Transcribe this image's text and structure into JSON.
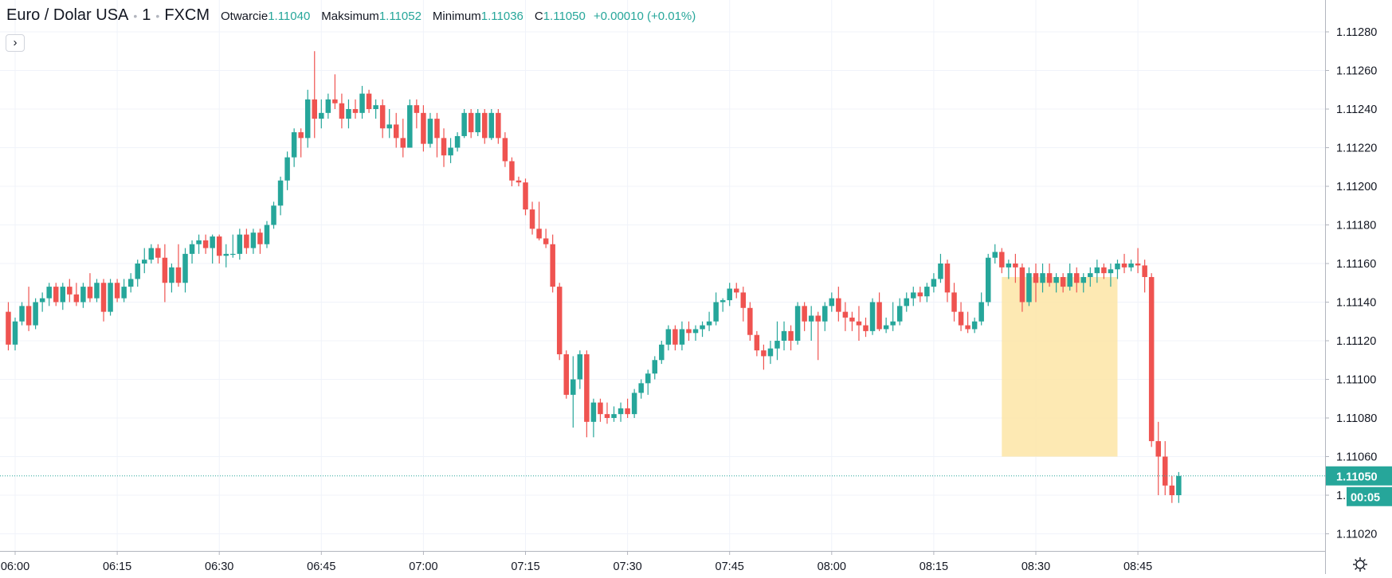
{
  "header": {
    "symbol": "Euro / Dolar USA",
    "interval": "1",
    "exchange": "FXCM",
    "open_label": "Otwarcie",
    "open_value": "1.11040",
    "high_label": "Maksimum",
    "high_value": "1.11052",
    "low_label": "Minimum",
    "low_value": "1.11036",
    "close_label": "C",
    "close_value": "1.11050",
    "change": "+0.00010 (+0.01%)"
  },
  "collapse_button": {
    "glyph": "›",
    "icon": "chevron-right-icon"
  },
  "settings": {
    "icon": "gear-icon"
  },
  "price_axis": {
    "labels": [
      "1.11280",
      "1.11260",
      "1.11240",
      "1.11220",
      "1.11200",
      "1.11180",
      "1.11160",
      "1.11140",
      "1.11120",
      "1.11100",
      "1.11080",
      "1.11060",
      "1.11040",
      "1.11020"
    ],
    "current_price": "1.11050",
    "countdown": "00:05"
  },
  "time_axis": {
    "labels": [
      "06:00",
      "06:15",
      "06:30",
      "06:45",
      "07:00",
      "07:15",
      "07:30",
      "07:45",
      "08:00",
      "08:15",
      "08:30",
      "08:45"
    ]
  },
  "colors": {
    "up": "#26a69a",
    "down": "#ef5350",
    "grid": "#f0f3fa",
    "highlight": "#fde5a6"
  },
  "chart_data": {
    "type": "candlestick",
    "symbol": "EURUSD",
    "interval_minutes": 1,
    "start_time": "05:59",
    "x_ticks": [
      "06:00",
      "06:15",
      "06:30",
      "06:45",
      "07:00",
      "07:15",
      "07:30",
      "07:45",
      "08:00",
      "08:15",
      "08:30",
      "08:45"
    ],
    "y_range": [
      1.11005,
      1.11295
    ],
    "y_ticks": [
      1.1128,
      1.1126,
      1.1124,
      1.1122,
      1.112,
      1.1118,
      1.1116,
      1.1114,
      1.1112,
      1.111,
      1.1108,
      1.1106,
      1.1104,
      1.1102
    ],
    "grid": true,
    "highlight_box": {
      "from": "08:25",
      "to": "08:42",
      "low": 1.1106,
      "high": 1.11153
    },
    "candles": [
      [
        1.11135,
        1.1114,
        1.11115,
        1.11118
      ],
      [
        1.11118,
        1.11132,
        1.11115,
        1.1113
      ],
      [
        1.1113,
        1.1114,
        1.11128,
        1.11138
      ],
      [
        1.11138,
        1.11148,
        1.11125,
        1.11128
      ],
      [
        1.11128,
        1.11142,
        1.11126,
        1.1114
      ],
      [
        1.1114,
        1.11145,
        1.11135,
        1.11142
      ],
      [
        1.11142,
        1.1115,
        1.11138,
        1.11148
      ],
      [
        1.11148,
        1.1115,
        1.11138,
        1.1114
      ],
      [
        1.1114,
        1.1115,
        1.11136,
        1.11148
      ],
      [
        1.11148,
        1.11152,
        1.1114,
        1.11144
      ],
      [
        1.11144,
        1.1115,
        1.11138,
        1.1114
      ],
      [
        1.1114,
        1.1115,
        1.11137,
        1.11148
      ],
      [
        1.11148,
        1.11155,
        1.1114,
        1.11142
      ],
      [
        1.11142,
        1.11152,
        1.1114,
        1.1115
      ],
      [
        1.1115,
        1.11152,
        1.1113,
        1.11135
      ],
      [
        1.11135,
        1.11152,
        1.11133,
        1.1115
      ],
      [
        1.1115,
        1.11152,
        1.1114,
        1.11142
      ],
      [
        1.11142,
        1.11152,
        1.1114,
        1.11148
      ],
      [
        1.11148,
        1.11155,
        1.11145,
        1.11152
      ],
      [
        1.11152,
        1.11162,
        1.11148,
        1.1116
      ],
      [
        1.1116,
        1.11168,
        1.11155,
        1.11162
      ],
      [
        1.11162,
        1.1117,
        1.1116,
        1.11168
      ],
      [
        1.11168,
        1.1117,
        1.1116,
        1.11163
      ],
      [
        1.11163,
        1.1117,
        1.1114,
        1.1115
      ],
      [
        1.1115,
        1.1116,
        1.11145,
        1.11158
      ],
      [
        1.11158,
        1.1117,
        1.11148,
        1.1115
      ],
      [
        1.1115,
        1.11168,
        1.11145,
        1.11165
      ],
      [
        1.11165,
        1.11172,
        1.1116,
        1.1117
      ],
      [
        1.1117,
        1.11175,
        1.11165,
        1.11172
      ],
      [
        1.11172,
        1.11175,
        1.11165,
        1.11168
      ],
      [
        1.11168,
        1.11175,
        1.1116,
        1.11174
      ],
      [
        1.11174,
        1.11175,
        1.1116,
        1.11164
      ],
      [
        1.11164,
        1.1117,
        1.11158,
        1.11165
      ],
      [
        1.11165,
        1.11175,
        1.11163,
        1.11165
      ],
      [
        1.11165,
        1.11178,
        1.11162,
        1.11175
      ],
      [
        1.11175,
        1.11178,
        1.11165,
        1.11168
      ],
      [
        1.11168,
        1.11178,
        1.11165,
        1.11176
      ],
      [
        1.11176,
        1.11178,
        1.11165,
        1.1117
      ],
      [
        1.1117,
        1.11182,
        1.11168,
        1.1118
      ],
      [
        1.1118,
        1.11192,
        1.11178,
        1.1119
      ],
      [
        1.1119,
        1.11205,
        1.11185,
        1.11203
      ],
      [
        1.11203,
        1.11218,
        1.11198,
        1.11215
      ],
      [
        1.11215,
        1.1123,
        1.1121,
        1.11228
      ],
      [
        1.11228,
        1.1123,
        1.11215,
        1.11225
      ],
      [
        1.11225,
        1.1125,
        1.1122,
        1.11245
      ],
      [
        1.11245,
        1.1127,
        1.11225,
        1.11235
      ],
      [
        1.11235,
        1.11245,
        1.1123,
        1.11238
      ],
      [
        1.11238,
        1.11248,
        1.11235,
        1.11245
      ],
      [
        1.11245,
        1.11258,
        1.1124,
        1.11243
      ],
      [
        1.11243,
        1.11248,
        1.1123,
        1.11235
      ],
      [
        1.11235,
        1.11245,
        1.1123,
        1.1124
      ],
      [
        1.1124,
        1.11245,
        1.11235,
        1.11238
      ],
      [
        1.11238,
        1.11252,
        1.11235,
        1.11248
      ],
      [
        1.11248,
        1.1125,
        1.11238,
        1.1124
      ],
      [
        1.1124,
        1.11245,
        1.11235,
        1.11242
      ],
      [
        1.11242,
        1.11245,
        1.11225,
        1.1123
      ],
      [
        1.1123,
        1.1124,
        1.11225,
        1.11232
      ],
      [
        1.11232,
        1.11238,
        1.1122,
        1.11225
      ],
      [
        1.11225,
        1.11235,
        1.11215,
        1.1122
      ],
      [
        1.1122,
        1.11245,
        1.1122,
        1.11242
      ],
      [
        1.11242,
        1.11245,
        1.1123,
        1.11238
      ],
      [
        1.11238,
        1.11242,
        1.11218,
        1.11222
      ],
      [
        1.11222,
        1.11238,
        1.1122,
        1.11235
      ],
      [
        1.11235,
        1.11238,
        1.11215,
        1.11225
      ],
      [
        1.11225,
        1.1123,
        1.1121,
        1.11216
      ],
      [
        1.11216,
        1.11225,
        1.11212,
        1.1122
      ],
      [
        1.1122,
        1.11228,
        1.11218,
        1.11226
      ],
      [
        1.11226,
        1.1124,
        1.11225,
        1.11238
      ],
      [
        1.11238,
        1.1124,
        1.11225,
        1.11228
      ],
      [
        1.11228,
        1.1124,
        1.11226,
        1.11238
      ],
      [
        1.11238,
        1.1124,
        1.11222,
        1.11225
      ],
      [
        1.11225,
        1.1124,
        1.11224,
        1.11238
      ],
      [
        1.11238,
        1.1124,
        1.11222,
        1.11225
      ],
      [
        1.11225,
        1.11228,
        1.1121,
        1.11213
      ],
      [
        1.11213,
        1.11215,
        1.112,
        1.11203
      ],
      [
        1.11203,
        1.11205,
        1.112,
        1.11202
      ],
      [
        1.11202,
        1.11204,
        1.11185,
        1.11188
      ],
      [
        1.11188,
        1.11192,
        1.11175,
        1.11178
      ],
      [
        1.11178,
        1.11192,
        1.11172,
        1.11173
      ],
      [
        1.11173,
        1.11178,
        1.11168,
        1.1117
      ],
      [
        1.1117,
        1.11175,
        1.11145,
        1.11148
      ],
      [
        1.11148,
        1.1115,
        1.1111,
        1.11113
      ],
      [
        1.11113,
        1.11115,
        1.1109,
        1.11092
      ],
      [
        1.11092,
        1.11112,
        1.11075,
        1.111
      ],
      [
        1.111,
        1.11115,
        1.11095,
        1.11113
      ],
      [
        1.11113,
        1.11115,
        1.1107,
        1.11078
      ],
      [
        1.11078,
        1.1109,
        1.1107,
        1.11088
      ],
      [
        1.11088,
        1.1109,
        1.11078,
        1.11082
      ],
      [
        1.11082,
        1.11088,
        1.11077,
        1.1108
      ],
      [
        1.1108,
        1.11086,
        1.11078,
        1.11082
      ],
      [
        1.11082,
        1.11088,
        1.11078,
        1.11085
      ],
      [
        1.11085,
        1.1109,
        1.1108,
        1.11082
      ],
      [
        1.11082,
        1.11095,
        1.1108,
        1.11093
      ],
      [
        1.11093,
        1.111,
        1.1109,
        1.11098
      ],
      [
        1.11098,
        1.11105,
        1.11092,
        1.11103
      ],
      [
        1.11103,
        1.11112,
        1.111,
        1.1111
      ],
      [
        1.1111,
        1.1112,
        1.11108,
        1.11118
      ],
      [
        1.11118,
        1.11128,
        1.11115,
        1.11126
      ],
      [
        1.11126,
        1.11128,
        1.11115,
        1.11118
      ],
      [
        1.11118,
        1.1113,
        1.11115,
        1.11126
      ],
      [
        1.11126,
        1.1113,
        1.1112,
        1.11124
      ],
      [
        1.11124,
        1.11128,
        1.1112,
        1.11126
      ],
      [
        1.11126,
        1.1113,
        1.11122,
        1.11128
      ],
      [
        1.11128,
        1.11135,
        1.11125,
        1.1113
      ],
      [
        1.1113,
        1.11145,
        1.11128,
        1.1114
      ],
      [
        1.1114,
        1.11142,
        1.11135,
        1.11141
      ],
      [
        1.11141,
        1.1115,
        1.11138,
        1.11147
      ],
      [
        1.11147,
        1.1115,
        1.11142,
        1.11145
      ],
      [
        1.11145,
        1.11148,
        1.1113,
        1.11137
      ],
      [
        1.11137,
        1.1114,
        1.1112,
        1.11123
      ],
      [
        1.11123,
        1.11125,
        1.11112,
        1.11115
      ],
      [
        1.11115,
        1.11118,
        1.11105,
        1.11112
      ],
      [
        1.11112,
        1.1112,
        1.11108,
        1.11116
      ],
      [
        1.11116,
        1.1113,
        1.1111,
        1.1112
      ],
      [
        1.1112,
        1.1113,
        1.11115,
        1.11125
      ],
      [
        1.11125,
        1.11128,
        1.11115,
        1.1112
      ],
      [
        1.1112,
        1.1114,
        1.11118,
        1.11138
      ],
      [
        1.11138,
        1.1114,
        1.11125,
        1.1113
      ],
      [
        1.1113,
        1.11138,
        1.1112,
        1.11133
      ],
      [
        1.11133,
        1.11135,
        1.1111,
        1.1113
      ],
      [
        1.1113,
        1.1114,
        1.11125,
        1.11138
      ],
      [
        1.11138,
        1.11145,
        1.11135,
        1.11142
      ],
      [
        1.11142,
        1.11148,
        1.1113,
        1.11135
      ],
      [
        1.11135,
        1.1114,
        1.11125,
        1.11132
      ],
      [
        1.11132,
        1.11135,
        1.11125,
        1.1113
      ],
      [
        1.1113,
        1.11138,
        1.1112,
        1.11128
      ],
      [
        1.11128,
        1.11132,
        1.11122,
        1.11125
      ],
      [
        1.11125,
        1.11142,
        1.11123,
        1.1114
      ],
      [
        1.1114,
        1.11145,
        1.11125,
        1.11126
      ],
      [
        1.11126,
        1.11132,
        1.11124,
        1.11128
      ],
      [
        1.11128,
        1.1114,
        1.11125,
        1.1113
      ],
      [
        1.1113,
        1.11142,
        1.11128,
        1.11138
      ],
      [
        1.11138,
        1.11145,
        1.11135,
        1.11142
      ],
      [
        1.11142,
        1.11148,
        1.11138,
        1.11145
      ],
      [
        1.11145,
        1.11148,
        1.1114,
        1.11143
      ],
      [
        1.11143,
        1.1115,
        1.1114,
        1.11148
      ],
      [
        1.11148,
        1.11155,
        1.11145,
        1.11152
      ],
      [
        1.11152,
        1.11165,
        1.1115,
        1.1116
      ],
      [
        1.1116,
        1.11162,
        1.1114,
        1.11145
      ],
      [
        1.11145,
        1.1115,
        1.1113,
        1.11135
      ],
      [
        1.11135,
        1.1114,
        1.11125,
        1.11128
      ],
      [
        1.11128,
        1.11135,
        1.11124,
        1.11126
      ],
      [
        1.11126,
        1.11132,
        1.11124,
        1.1113
      ],
      [
        1.1113,
        1.11145,
        1.11128,
        1.1114
      ],
      [
        1.1114,
        1.11165,
        1.11138,
        1.11163
      ],
      [
        1.11163,
        1.1117,
        1.1116,
        1.11166
      ],
      [
        1.11166,
        1.11168,
        1.11155,
        1.11158
      ],
      [
        1.11158,
        1.11162,
        1.11152,
        1.1116
      ],
      [
        1.1116,
        1.11165,
        1.1115,
        1.11158
      ],
      [
        1.11158,
        1.1116,
        1.11135,
        1.1114
      ],
      [
        1.1114,
        1.11158,
        1.11138,
        1.11155
      ],
      [
        1.11155,
        1.1116,
        1.1114,
        1.1115
      ],
      [
        1.1115,
        1.1116,
        1.11145,
        1.11155
      ],
      [
        1.11155,
        1.1116,
        1.11148,
        1.1115
      ],
      [
        1.1115,
        1.11155,
        1.11145,
        1.11153
      ],
      [
        1.11153,
        1.11155,
        1.11145,
        1.11148
      ],
      [
        1.11148,
        1.1116,
        1.11146,
        1.11155
      ],
      [
        1.11155,
        1.11158,
        1.11145,
        1.1115
      ],
      [
        1.1115,
        1.11155,
        1.11145,
        1.11153
      ],
      [
        1.11153,
        1.11158,
        1.11148,
        1.11155
      ],
      [
        1.11155,
        1.11162,
        1.1115,
        1.11158
      ],
      [
        1.11158,
        1.1116,
        1.11152,
        1.11155
      ],
      [
        1.11155,
        1.1116,
        1.11148,
        1.11157
      ],
      [
        1.11157,
        1.11162,
        1.11152,
        1.1116
      ],
      [
        1.1116,
        1.11165,
        1.11155,
        1.11158
      ],
      [
        1.11158,
        1.11162,
        1.11156,
        1.1116
      ],
      [
        1.1116,
        1.11168,
        1.11155,
        1.11159
      ],
      [
        1.11159,
        1.11162,
        1.11145,
        1.11153
      ],
      [
        1.11153,
        1.11155,
        1.11065,
        1.11068
      ],
      [
        1.11068,
        1.11078,
        1.1104,
        1.1106
      ],
      [
        1.1106,
        1.11068,
        1.1104,
        1.11045
      ],
      [
        1.11045,
        1.1105,
        1.11036,
        1.1104
      ],
      [
        1.1104,
        1.11052,
        1.11036,
        1.1105
      ]
    ]
  }
}
